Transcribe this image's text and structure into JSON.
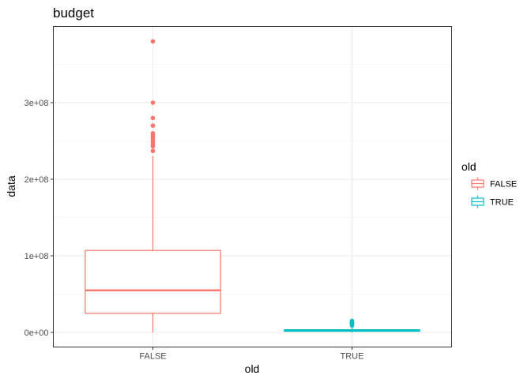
{
  "chart_data": {
    "type": "boxplot",
    "title": "budget",
    "xlabel": "old",
    "ylabel": "data",
    "categories": [
      "FALSE",
      "TRUE"
    ],
    "y_ticks": [
      {
        "value": 0,
        "label": "0e+00"
      },
      {
        "value": 100000000,
        "label": "1e+08"
      },
      {
        "value": 200000000,
        "label": "2e+08"
      },
      {
        "value": 300000000,
        "label": "3e+08"
      }
    ],
    "ylim": [
      -20000000,
      400000000
    ],
    "grid": true,
    "legend": {
      "title": "old",
      "position": "right",
      "entries": [
        {
          "label": "FALSE",
          "color": "#F8766D"
        },
        {
          "label": "TRUE",
          "color": "#00BFC4"
        }
      ]
    },
    "series": [
      {
        "category": "FALSE",
        "color": "#F8766D",
        "min": 0,
        "q1": 25000000,
        "median": 55000000,
        "q3": 107000000,
        "max": 230000000,
        "outliers": [
          237000000,
          243000000,
          245000000,
          248000000,
          250000000,
          253000000,
          255000000,
          258000000,
          260000000,
          270000000,
          280000000,
          300000000,
          380000000
        ]
      },
      {
        "category": "TRUE",
        "color": "#00BFC4",
        "min": 0,
        "q1": 1500000,
        "median": 2500000,
        "q3": 3500000,
        "max": 8000000,
        "outliers": [
          9000000,
          10000000,
          11000000,
          12000000,
          13000000,
          14000000,
          15000000
        ]
      }
    ]
  }
}
